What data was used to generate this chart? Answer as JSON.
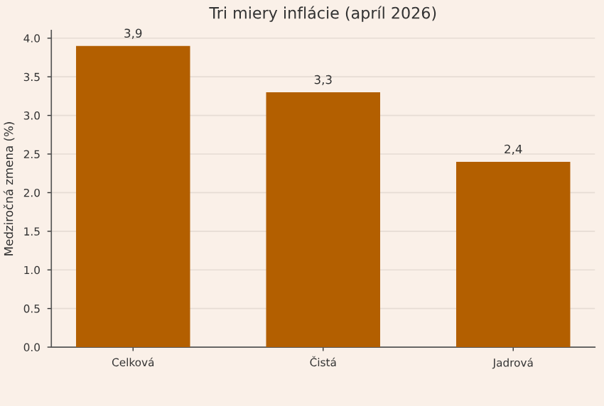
{
  "chart_data": {
    "type": "bar",
    "title": "Tri miery inflácie (apríl 2026)",
    "ylabel": "Medziročná zmena (%)",
    "categories": [
      "Celková",
      "Čistá",
      "Jadrová"
    ],
    "values": [
      3.9,
      3.3,
      2.4
    ],
    "color": "#b35f00",
    "value_labels": [
      "3,9",
      "3,3",
      "2,4"
    ],
    "ylim": [
      0,
      4.1
    ],
    "yticks": [
      {
        "value": 0,
        "label": "0.0"
      },
      {
        "value": 0.5,
        "label": "0.5"
      },
      {
        "value": 1,
        "label": "1.0"
      },
      {
        "value": 1.5,
        "label": "1.5"
      },
      {
        "value": 2,
        "label": "2.0"
      },
      {
        "value": 2.5,
        "label": "2.5"
      },
      {
        "value": 3,
        "label": "3.0"
      },
      {
        "value": 3.5,
        "label": "3.5"
      },
      {
        "value": 4,
        "label": "4.0"
      }
    ],
    "grid": "y"
  }
}
